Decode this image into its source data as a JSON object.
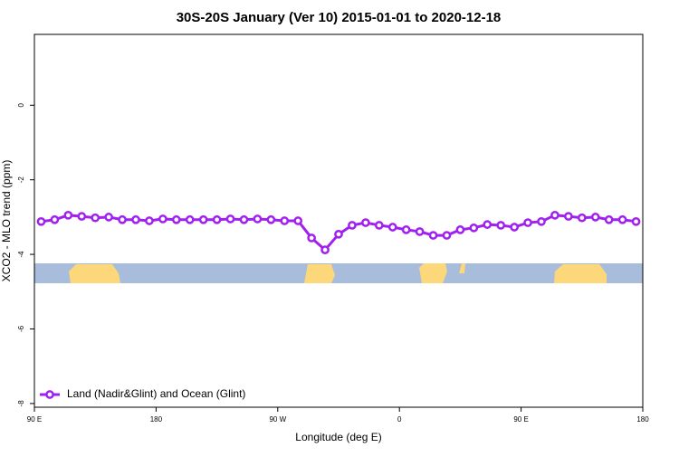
{
  "chart_data": {
    "type": "line",
    "title": "30S-20S January (Ver 10)   2015-01-01 to 2020-12-18",
    "x_label": "Longitude (deg E)",
    "y_label": "XCO2 - MLO trend (ppm)",
    "x": [
      95,
      105,
      115,
      125,
      135,
      145,
      155,
      165,
      175,
      185,
      195,
      205,
      215,
      225,
      235,
      245,
      255,
      265,
      275,
      285,
      295,
      305,
      315,
      325,
      335,
      345,
      355,
      365,
      375,
      385,
      395,
      405,
      415,
      425,
      435,
      445,
      455,
      465,
      475,
      485,
      495,
      505,
      515,
      525,
      535
    ],
    "series": [
      {
        "name": "Land (Nadir&Glint) and Ocean (Glint)",
        "color": "#a020f0",
        "values": [
          -3.12,
          -3.07,
          -2.95,
          -2.98,
          -3.02,
          -3.0,
          -3.07,
          -3.07,
          -3.1,
          -3.05,
          -3.07,
          -3.07,
          -3.07,
          -3.07,
          -3.05,
          -3.07,
          -3.05,
          -3.07,
          -3.1,
          -3.1,
          -3.56,
          -3.88,
          -3.46,
          -3.22,
          -3.15,
          -3.22,
          -3.27,
          -3.34,
          -3.39,
          -3.49,
          -3.49,
          -3.34,
          -3.29,
          -3.2,
          -3.22,
          -3.27,
          -3.15,
          -3.12,
          -2.95,
          -2.98,
          -3.02,
          -3.0,
          -3.07,
          -3.07,
          -3.12
        ]
      }
    ],
    "xlim": [
      90,
      540
    ],
    "xticks": [
      {
        "value": 90,
        "label": "90 E"
      },
      180,
      {
        "value": 270,
        "label": "90 W"
      },
      {
        "value": 360,
        "label": "0"
      },
      {
        "value": 450,
        "label": "90 E"
      },
      {
        "value": 540,
        "label": "180"
      }
    ],
    "ylim": [
      -8.1,
      1.9
    ],
    "yticks": [
      0,
      -2,
      -4,
      -6,
      -8
    ],
    "legend": "bottom-left"
  }
}
